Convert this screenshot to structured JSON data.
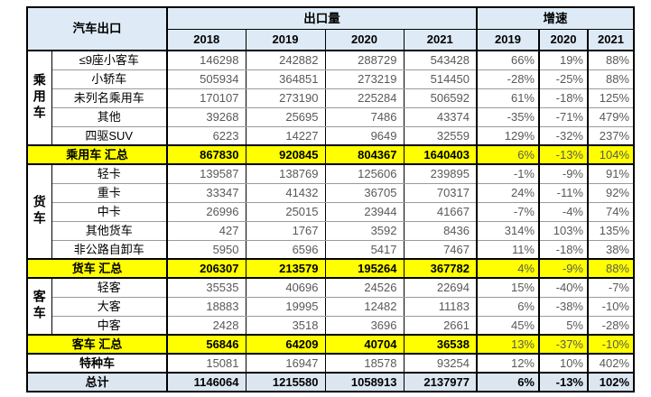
{
  "colors": {
    "header_bg": "#DEEBF7",
    "summary_row_bg": "#FFFF00",
    "total_row_bg": "#DCE6F1",
    "value_text": "#595959",
    "border": "#000000"
  },
  "chart_data": {
    "type": "table",
    "title": "汽车出口",
    "volume_label": "出口量",
    "growth_label": "增速",
    "volume_years": [
      "2018",
      "2019",
      "2020",
      "2021"
    ],
    "growth_years": [
      "2019",
      "2020",
      "2021"
    ],
    "rows": [
      {
        "kind": "data",
        "group": "乘用车",
        "group_span": 5,
        "label": "≤9座小客车",
        "volumes": [
          146298,
          242882,
          288729,
          543428
        ],
        "growth": [
          "66%",
          "19%",
          "88%"
        ]
      },
      {
        "kind": "data",
        "label": "小轿车",
        "volumes": [
          505934,
          364851,
          273219,
          514450
        ],
        "growth": [
          "-28%",
          "-25%",
          "88%"
        ]
      },
      {
        "kind": "data",
        "label": "未列名乘用车",
        "volumes": [
          170107,
          273190,
          225284,
          506592
        ],
        "growth": [
          "61%",
          "-18%",
          "125%"
        ]
      },
      {
        "kind": "data",
        "label": "其他",
        "volumes": [
          39268,
          25695,
          7486,
          43374
        ],
        "growth": [
          "-35%",
          "-71%",
          "479%"
        ]
      },
      {
        "kind": "data",
        "label": "四驱SUV",
        "volumes": [
          6223,
          14227,
          9649,
          32559
        ],
        "growth": [
          "129%",
          "-32%",
          "237%"
        ]
      },
      {
        "kind": "summary",
        "label": "乘用车 汇总",
        "volumes": [
          867830,
          920845,
          804367,
          1640403
        ],
        "growth": [
          "6%",
          "-13%",
          "104%"
        ]
      },
      {
        "kind": "data",
        "group": "货车",
        "group_span": 5,
        "label": "轻卡",
        "volumes": [
          139587,
          138769,
          125606,
          239895
        ],
        "growth": [
          "-1%",
          "-9%",
          "91%"
        ]
      },
      {
        "kind": "data",
        "label": "重卡",
        "volumes": [
          33347,
          41432,
          36705,
          70317
        ],
        "growth": [
          "24%",
          "-11%",
          "92%"
        ]
      },
      {
        "kind": "data",
        "label": "中卡",
        "volumes": [
          26996,
          25015,
          23944,
          41667
        ],
        "growth": [
          "-7%",
          "-4%",
          "74%"
        ]
      },
      {
        "kind": "data",
        "label": "其他货车",
        "volumes": [
          427,
          1767,
          3592,
          8436
        ],
        "growth": [
          "314%",
          "103%",
          "135%"
        ]
      },
      {
        "kind": "data",
        "label": "非公路自卸车",
        "volumes": [
          5950,
          6596,
          5417,
          7467
        ],
        "growth": [
          "11%",
          "-18%",
          "38%"
        ]
      },
      {
        "kind": "summary",
        "label": "货车 汇总",
        "volumes": [
          206307,
          213579,
          195264,
          367782
        ],
        "growth": [
          "4%",
          "-9%",
          "88%"
        ]
      },
      {
        "kind": "data",
        "group": "客车",
        "group_span": 3,
        "label": "轻客",
        "volumes": [
          35535,
          40696,
          24526,
          22694
        ],
        "growth": [
          "15%",
          "-40%",
          "-7%"
        ]
      },
      {
        "kind": "data",
        "label": "大客",
        "volumes": [
          18883,
          19995,
          12482,
          11183
        ],
        "growth": [
          "6%",
          "-38%",
          "-10%"
        ]
      },
      {
        "kind": "data",
        "label": "中客",
        "volumes": [
          2428,
          3518,
          3696,
          2661
        ],
        "growth": [
          "45%",
          "5%",
          "-28%"
        ]
      },
      {
        "kind": "summary",
        "label": "客车 汇总",
        "volumes": [
          56846,
          64209,
          40704,
          36538
        ],
        "growth": [
          "13%",
          "-37%",
          "-10%"
        ]
      },
      {
        "kind": "special",
        "label": "特种车",
        "volumes": [
          15081,
          16947,
          18578,
          93254
        ],
        "growth": [
          "12%",
          "10%",
          "402%"
        ]
      },
      {
        "kind": "total",
        "label": "总计",
        "volumes": [
          1146064,
          1215580,
          1058913,
          2137977
        ],
        "growth": [
          "6%",
          "-13%",
          "102%"
        ]
      }
    ]
  }
}
